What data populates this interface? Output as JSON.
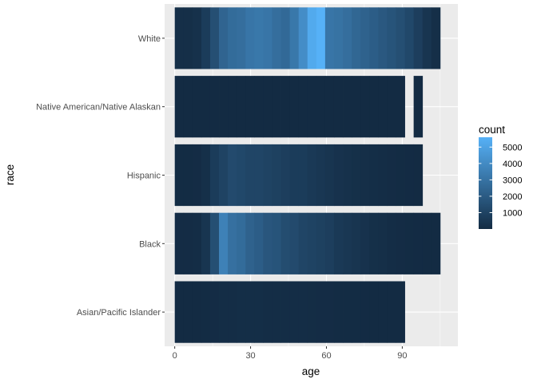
{
  "chart_data": {
    "type": "heatmap",
    "xlabel": "age",
    "ylabel": "race",
    "xlim": [
      -4,
      112
    ],
    "x_ticks": [
      0,
      30,
      60,
      90
    ],
    "x_tick_labels": [
      "0",
      "30",
      "60",
      "90"
    ],
    "categories": [
      "Asian/Pacific Islander",
      "Black",
      "Hispanic",
      "Native American/Native Alaskan",
      "White"
    ],
    "bin_width": 3.5,
    "legend": {
      "title": "count",
      "position": "right",
      "min": 0,
      "max": 5600,
      "breaks": [
        1000,
        2000,
        3000,
        4000,
        5000
      ],
      "break_labels": [
        "1000",
        "2000",
        "3000",
        "4000",
        "5000"
      ],
      "low_color": "#132B43",
      "high_color": "#56B1F7"
    },
    "series": [
      {
        "name": "White",
        "x": [
          0,
          3.5,
          7,
          10.5,
          14,
          17.5,
          21,
          24.5,
          28,
          31.5,
          35,
          38.5,
          42,
          45.5,
          49,
          52.5,
          56,
          59.5,
          63,
          66.5,
          70,
          73.5,
          77,
          80.5,
          84,
          87.5,
          91,
          94.5,
          98,
          101.5
        ],
        "values": [
          150,
          150,
          250,
          700,
          1500,
          2400,
          2700,
          2800,
          3100,
          3200,
          3100,
          2800,
          2600,
          3200,
          4100,
          5300,
          5600,
          3100,
          3000,
          2800,
          2500,
          2300,
          2100,
          1900,
          1700,
          1500,
          1200,
          800,
          400,
          150
        ]
      },
      {
        "name": "Native American/Native Alaskan",
        "x": [
          0,
          3.5,
          7,
          10.5,
          14,
          17.5,
          21,
          24.5,
          28,
          31.5,
          35,
          38.5,
          42,
          45.5,
          49,
          52.5,
          56,
          59.5,
          63,
          66.5,
          70,
          73.5,
          77,
          80.5,
          84,
          87.5,
          94.5
        ],
        "values": [
          8,
          8,
          8,
          8,
          8,
          10,
          12,
          12,
          12,
          12,
          12,
          12,
          12,
          12,
          12,
          12,
          12,
          10,
          10,
          8,
          8,
          8,
          8,
          8,
          8,
          8,
          8
        ]
      },
      {
        "name": "Hispanic",
        "x": [
          0,
          3.5,
          7,
          10.5,
          14,
          17.5,
          21,
          24.5,
          28,
          31.5,
          35,
          38.5,
          42,
          45.5,
          49,
          52.5,
          56,
          59.5,
          63,
          66.5,
          70,
          73.5,
          77,
          80.5,
          84,
          87.5,
          91,
          94.5
        ],
        "values": [
          40,
          40,
          60,
          200,
          700,
          1000,
          1300,
          1200,
          1100,
          1100,
          1000,
          900,
          800,
          700,
          700,
          600,
          500,
          400,
          300,
          250,
          200,
          150,
          120,
          90,
          60,
          40,
          20,
          10
        ]
      },
      {
        "name": "Black",
        "x": [
          0,
          3.5,
          7,
          10.5,
          14,
          17.5,
          21,
          24.5,
          28,
          31.5,
          35,
          38.5,
          42,
          45.5,
          49,
          52.5,
          56,
          59.5,
          63,
          66.5,
          70,
          73.5,
          77,
          80.5,
          84,
          87.5,
          91,
          94.5,
          98,
          101.5
        ],
        "values": [
          60,
          60,
          100,
          400,
          1500,
          3600,
          2900,
          2700,
          2300,
          2100,
          1800,
          1700,
          1400,
          1300,
          1100,
          1000,
          900,
          800,
          600,
          500,
          400,
          300,
          200,
          150,
          100,
          60,
          40,
          20,
          10,
          5
        ]
      },
      {
        "name": "Asian/Pacific Islander",
        "x": [
          0,
          3.5,
          7,
          10.5,
          14,
          17.5,
          21,
          24.5,
          28,
          31.5,
          35,
          38.5,
          42,
          45.5,
          49,
          52.5,
          56,
          59.5,
          63,
          66.5,
          70,
          73.5,
          77,
          80.5,
          84,
          87.5
        ],
        "values": [
          10,
          10,
          15,
          30,
          60,
          90,
          100,
          110,
          110,
          110,
          100,
          100,
          90,
          90,
          80,
          70,
          60,
          50,
          40,
          30,
          25,
          20,
          15,
          10,
          8,
          5
        ]
      }
    ]
  }
}
